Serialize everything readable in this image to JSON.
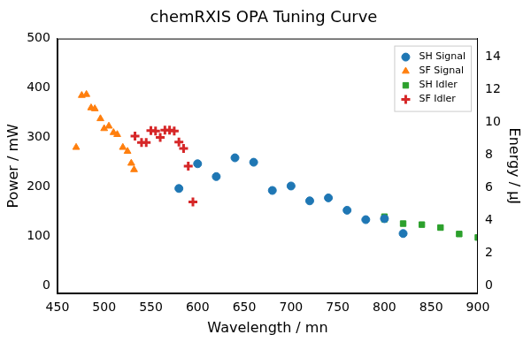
{
  "chart_data": {
    "type": "scatter",
    "title": "chemRXIS OPA Tuning Curve",
    "x_label": "Wavelength / mn",
    "y_label": "Power / mW",
    "y2_label": "Energy / μJ",
    "xlim": [
      450,
      900
    ],
    "xticks": [
      450,
      500,
      550,
      600,
      650,
      700,
      750,
      800,
      850,
      900
    ],
    "ylim": [
      -15,
      500
    ],
    "yticks": [
      0,
      100,
      200,
      300,
      400,
      500
    ],
    "y2lim": [
      -0.45,
      15.1
    ],
    "y2ticks": [
      0,
      2,
      4,
      6,
      8,
      10,
      12,
      14
    ],
    "grid": false,
    "legend": "upper right",
    "series": [
      {
        "name": "SH Signal",
        "color": "#1f77b4",
        "marker": "circle",
        "x": [
          580,
          600,
          620,
          640,
          660,
          680,
          700,
          720,
          740,
          760,
          780,
          800,
          820
        ],
        "values": [
          197,
          247,
          221,
          259,
          250,
          193,
          202,
          172,
          178,
          153,
          134,
          136,
          106
        ]
      },
      {
        "name": "SF Signal",
        "color": "#ff7f0e",
        "marker": "triangle",
        "x": [
          470,
          476,
          481,
          486,
          490,
          496,
          500,
          505,
          510,
          514,
          520,
          525,
          529,
          532
        ],
        "values": [
          280,
          385,
          387,
          360,
          358,
          338,
          318,
          323,
          310,
          306,
          280,
          272,
          248,
          235
        ]
      },
      {
        "name": "SH Idler",
        "color": "#2ca02c",
        "marker": "square",
        "x": [
          800,
          800,
          820,
          840,
          860,
          880,
          900
        ],
        "values": [
          140,
          135,
          126,
          124,
          118,
          105,
          98
        ]
      },
      {
        "name": "SF Idler",
        "color": "#d62728",
        "marker": "plus",
        "x": [
          533,
          540,
          545,
          550,
          555,
          560,
          565,
          570,
          575,
          580,
          585,
          590,
          595
        ],
        "values": [
          303,
          290,
          290,
          314,
          313,
          300,
          315,
          315,
          313,
          291,
          278,
          242,
          170
        ]
      }
    ]
  }
}
